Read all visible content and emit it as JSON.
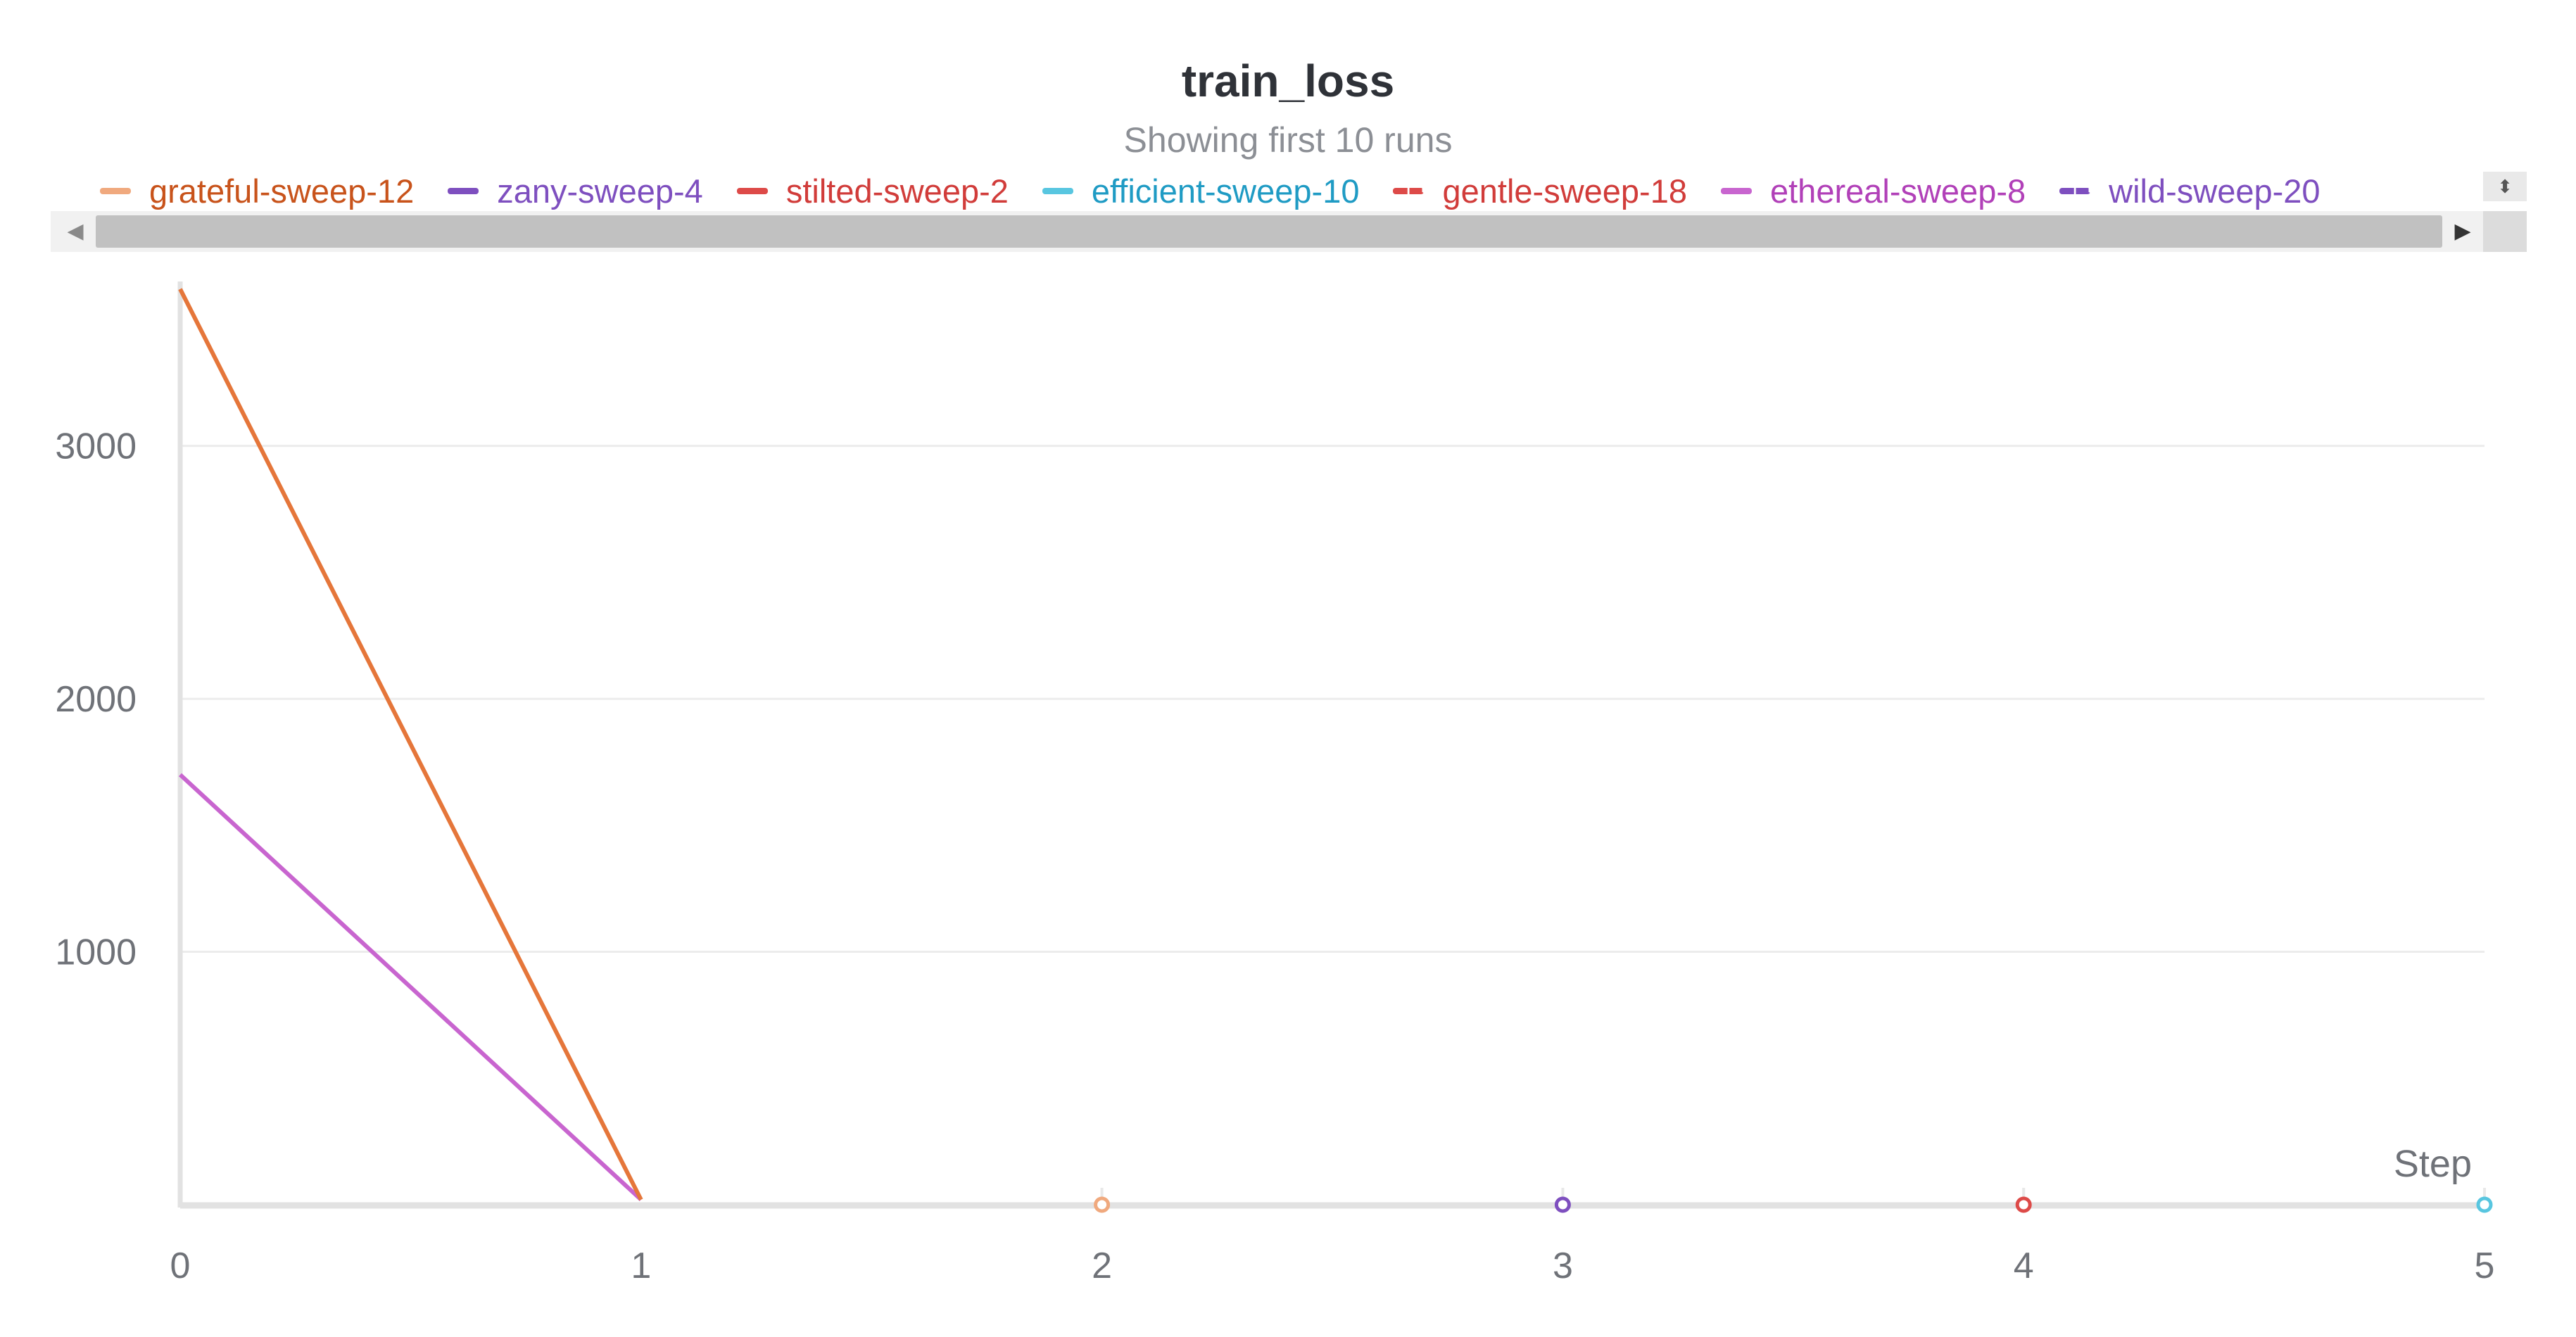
{
  "chart_data": {
    "type": "line",
    "title": "train_loss",
    "subtitle": "Showing first 10 runs",
    "xlabel": "Step",
    "ylabel": "",
    "xlim": [
      0,
      5
    ],
    "ylim": [
      0,
      3650
    ],
    "x_ticks": [
      0,
      1,
      2,
      3,
      4,
      5
    ],
    "y_ticks": [
      1000,
      2000,
      3000
    ],
    "grid": "horizontal",
    "legend_position": "top",
    "series": [
      {
        "name": "grateful-sweep-12",
        "color": "#f0a97e",
        "text_color": "#c8531b",
        "dash": false,
        "points": [
          {
            "x": 2,
            "y": 0
          }
        ]
      },
      {
        "name": "zany-sweep-4",
        "color": "#7e4fbf",
        "text_color": "#7e4fbf",
        "dash": false,
        "points": [
          {
            "x": 3,
            "y": 0
          }
        ]
      },
      {
        "name": "stilted-sweep-2",
        "color": "#dd4a48",
        "text_color": "#d13c3a",
        "dash": false,
        "points": [
          {
            "x": 4,
            "y": 0
          }
        ]
      },
      {
        "name": "efficient-sweep-10",
        "color": "#58c6e0",
        "text_color": "#1f9bc4",
        "dash": false,
        "points": [
          {
            "x": 5,
            "y": 0
          }
        ]
      },
      {
        "name": "gentle-sweep-18",
        "color": "#dd4a48",
        "text_color": "#d13c3a",
        "dash": true,
        "points": []
      },
      {
        "name": "ethereal-sweep-8",
        "color": "#c865cf",
        "text_color": "#b140b8",
        "dash": false,
        "points": [
          {
            "x": 0,
            "y": 1700
          },
          {
            "x": 1,
            "y": 20
          }
        ]
      },
      {
        "name": "wild-sweep-20",
        "color": "#7e4fbf",
        "text_color": "#7e4fbf",
        "dash": true,
        "points": []
      },
      {
        "name": "",
        "color": "#e5763a",
        "text_color": "#e5763a",
        "dash": false,
        "points": [
          {
            "x": 0,
            "y": 3620
          },
          {
            "x": 1,
            "y": 20
          }
        ]
      }
    ]
  },
  "legend_controls": {
    "scroll_left_glyph": "◀",
    "scroll_right_glyph": "▶",
    "scroll_vertical_glyph": "⬍"
  }
}
